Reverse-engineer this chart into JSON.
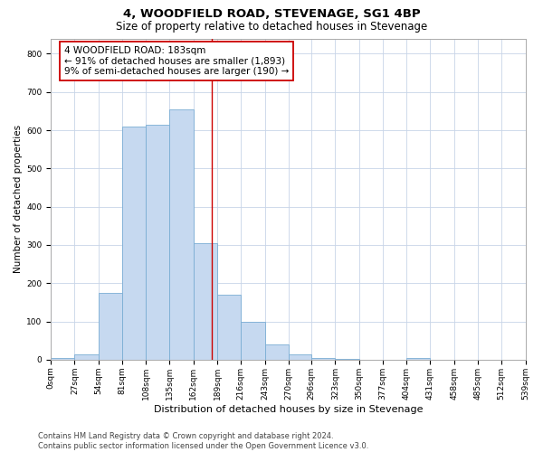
{
  "title": "4, WOODFIELD ROAD, STEVENAGE, SG1 4BP",
  "subtitle": "Size of property relative to detached houses in Stevenage",
  "xlabel": "Distribution of detached houses by size in Stevenage",
  "ylabel": "Number of detached properties",
  "bar_color": "#c6d9f0",
  "bar_edge_color": "#7aadd4",
  "background_color": "#ffffff",
  "grid_color": "#c8d4e8",
  "annotation_text": "4 WOODFIELD ROAD: 183sqm\n← 91% of detached houses are smaller (1,893)\n9% of semi-detached houses are larger (190) →",
  "annotation_box_color": "#ffffff",
  "annotation_border_color": "#cc0000",
  "vline_x": 183,
  "vline_color": "#cc0000",
  "bin_edges": [
    0,
    27,
    54,
    81,
    108,
    135,
    162,
    189,
    216,
    243,
    270,
    296,
    323,
    350,
    377,
    404,
    431,
    458,
    485,
    512,
    539
  ],
  "bar_heights": [
    5,
    13,
    175,
    610,
    615,
    655,
    305,
    170,
    100,
    40,
    15,
    5,
    2,
    0,
    0,
    5,
    0,
    0,
    0,
    0
  ],
  "ylim": [
    0,
    840
  ],
  "yticks": [
    0,
    100,
    200,
    300,
    400,
    500,
    600,
    700,
    800
  ],
  "footer_text": "Contains HM Land Registry data © Crown copyright and database right 2024.\nContains public sector information licensed under the Open Government Licence v3.0.",
  "title_fontsize": 9.5,
  "subtitle_fontsize": 8.5,
  "xlabel_fontsize": 8,
  "ylabel_fontsize": 7.5,
  "tick_fontsize": 6.5,
  "annotation_fontsize": 7.5,
  "footer_fontsize": 6.0
}
